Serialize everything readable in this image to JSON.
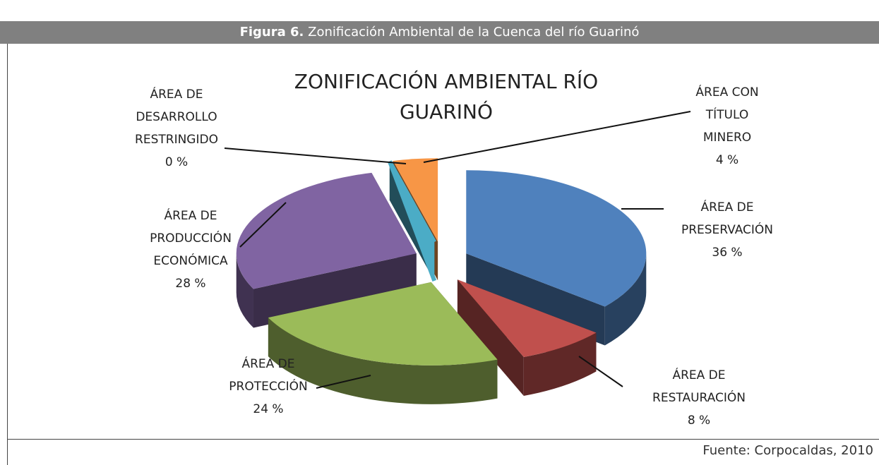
{
  "header": {
    "figure": "Figura 6.",
    "caption": "Zonificación Ambiental de la Cuenca del río Guarinó"
  },
  "chart_data": {
    "type": "pie3d",
    "title": "ZONIFICACIÓN AMBIENTAL RÍO GUARINÓ",
    "categories": [
      "ÁREA DE PRESERVACIÓN",
      "ÁREA DE RESTAURACIÓN",
      "ÁREA DE PROTECCIÓN",
      "ÁREA DE PRODUCCIÓN ECONÓMICA",
      "ÁREA DE DESARROLLO RESTRINGIDO",
      "ÁREA CON TÍTULO MINERO"
    ],
    "values": [
      36,
      8,
      24,
      28,
      0,
      4
    ],
    "value_labels": [
      "36 %",
      "8 %",
      "24 %",
      "28 %",
      "0 %",
      "4 %"
    ],
    "colors": [
      "#4f81bd",
      "#c0504d",
      "#9bbb59",
      "#8064a2",
      "#4bacc6",
      "#f79646"
    ]
  },
  "footer": {
    "source": "Fuente: Corpocaldas, 2010"
  }
}
